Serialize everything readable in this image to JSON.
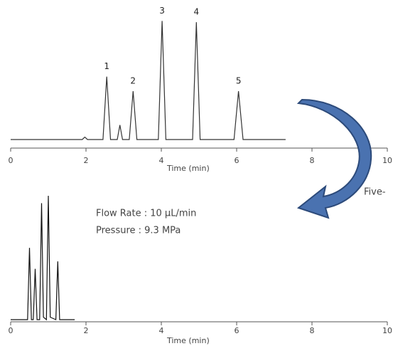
{
  "chart_data": [
    {
      "type": "line",
      "xlabel": "Time  (min)",
      "xlim": [
        0,
        10
      ],
      "xticks": [
        0,
        2,
        4,
        6,
        8,
        10
      ],
      "ylim": [
        0,
        100
      ],
      "color": "#333333",
      "x": [
        0,
        1.9,
        1.97,
        2.04,
        2.45,
        2.55,
        2.65,
        2.83,
        2.9,
        2.97,
        3.15,
        3.25,
        3.35,
        3.92,
        4.02,
        4.12,
        4.83,
        4.93,
        5.03,
        5.93,
        6.05,
        6.17,
        7.3
      ],
      "values": [
        0,
        0,
        2,
        0,
        0,
        52,
        0,
        0,
        12,
        0,
        0,
        40,
        0,
        0,
        98,
        0,
        0,
        97,
        0,
        0,
        40,
        0,
        0
      ],
      "peak_labels": [
        "1",
        "2",
        "3",
        "4",
        "5"
      ]
    },
    {
      "type": "line",
      "xlabel": "Time  (min)",
      "xlim": [
        0,
        10
      ],
      "xticks": [
        0,
        2,
        4,
        6,
        8,
        10
      ],
      "ylim": [
        0,
        100
      ],
      "color": "#111111",
      "x": [
        0,
        0.45,
        0.5,
        0.55,
        0.6,
        0.65,
        0.7,
        0.77,
        0.82,
        0.87,
        0.95,
        1.0,
        1.05,
        1.2,
        1.25,
        1.3,
        1.7
      ],
      "values": [
        0,
        0,
        58,
        0,
        0,
        41,
        0,
        0,
        94,
        2,
        0,
        100,
        2,
        0,
        47,
        0,
        0
      ],
      "notes": [
        "Flow Rate : 10 µL/min",
        "Pressure   : 9.3 MPa"
      ]
    }
  ],
  "callout": "Five-"
}
